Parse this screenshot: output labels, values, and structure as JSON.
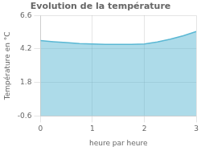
{
  "chart_data": {
    "type": "area",
    "title": "Evolution de la température",
    "xlabel": "heure par heure",
    "ylabel": "Température en °C",
    "x": [
      0,
      0.25,
      0.5,
      0.75,
      1.0,
      1.25,
      1.5,
      1.75,
      2.0,
      2.25,
      2.5,
      2.75,
      3.0
    ],
    "values": [
      4.8,
      4.72,
      4.65,
      4.58,
      4.55,
      4.52,
      4.52,
      4.52,
      4.55,
      4.7,
      4.9,
      5.15,
      5.45
    ],
    "color": "#5bb8d4",
    "xlim": [
      0,
      3
    ],
    "xticks": [
      0,
      1,
      2,
      3
    ],
    "ylim": [
      -0.6,
      6.6
    ],
    "yticks": [
      -0.6,
      1.8,
      4.2,
      6.6
    ],
    "grid": true
  }
}
